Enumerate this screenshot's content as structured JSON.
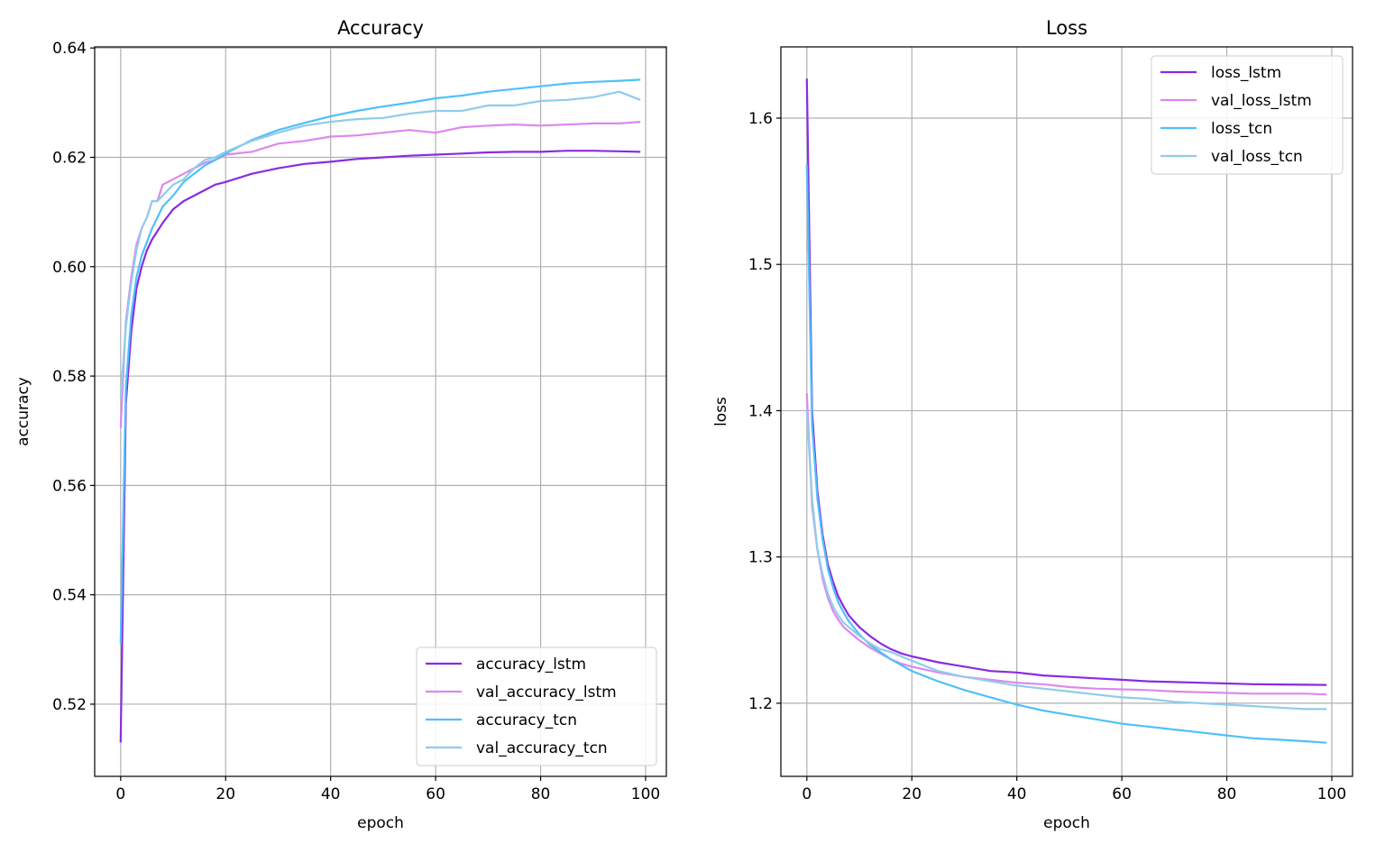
{
  "chart_data": [
    {
      "type": "line",
      "title": "Accuracy",
      "xlabel": "epoch",
      "ylabel": "accuracy",
      "xlim": [
        -4.95,
        103.95
      ],
      "ylim": [
        0.5068,
        0.6402
      ],
      "xticks": [
        0,
        20,
        40,
        60,
        80,
        100
      ],
      "yticks": [
        0.52,
        0.54,
        0.56,
        0.58,
        0.6,
        0.62,
        0.64
      ],
      "ytick_labels": [
        "0.52",
        "0.54",
        "0.56",
        "0.58",
        "0.60",
        "0.62",
        "0.64"
      ],
      "grid": true,
      "legend_position": "lower-right",
      "x": [
        0,
        1,
        2,
        3,
        4,
        5,
        6,
        7,
        8,
        10,
        12,
        14,
        16,
        18,
        20,
        25,
        30,
        35,
        40,
        45,
        50,
        55,
        60,
        65,
        70,
        75,
        80,
        85,
        90,
        95,
        99
      ],
      "series": [
        {
          "name": "accuracy_lstm",
          "color": "#8a2be2",
          "values": [
            0.513,
            0.575,
            0.588,
            0.596,
            0.6,
            0.603,
            0.605,
            0.6065,
            0.608,
            0.6105,
            0.612,
            0.613,
            0.614,
            0.615,
            0.6155,
            0.617,
            0.618,
            0.6188,
            0.6192,
            0.6197,
            0.62,
            0.6203,
            0.6205,
            0.6207,
            0.6209,
            0.621,
            0.621,
            0.6212,
            0.6212,
            0.6211,
            0.621
          ]
        },
        {
          "name": "val_accuracy_lstm",
          "color": "#dd88ee",
          "values": [
            0.5705,
            0.59,
            0.598,
            0.604,
            0.607,
            0.609,
            0.612,
            0.612,
            0.615,
            0.616,
            0.617,
            0.618,
            0.619,
            0.6195,
            0.6205,
            0.621,
            0.6225,
            0.623,
            0.6238,
            0.624,
            0.6245,
            0.625,
            0.6245,
            0.6255,
            0.6258,
            0.626,
            0.6258,
            0.626,
            0.6262,
            0.6262,
            0.6265
          ]
        },
        {
          "name": "accuracy_tcn",
          "color": "#4fc0fa",
          "values": [
            0.531,
            0.578,
            0.591,
            0.598,
            0.602,
            0.6045,
            0.607,
            0.609,
            0.611,
            0.613,
            0.6155,
            0.617,
            0.6185,
            0.6195,
            0.6207,
            0.6232,
            0.625,
            0.6263,
            0.6275,
            0.6285,
            0.6293,
            0.63,
            0.6308,
            0.6313,
            0.632,
            0.6325,
            0.633,
            0.6335,
            0.6338,
            0.634,
            0.6342
          ]
        },
        {
          "name": "val_accuracy_tcn",
          "color": "#90cceb",
          "values": [
            0.576,
            0.589,
            0.597,
            0.603,
            0.607,
            0.609,
            0.612,
            0.612,
            0.613,
            0.615,
            0.616,
            0.618,
            0.6195,
            0.62,
            0.621,
            0.623,
            0.6245,
            0.6258,
            0.6265,
            0.627,
            0.6272,
            0.628,
            0.6285,
            0.6285,
            0.6295,
            0.6295,
            0.6303,
            0.6305,
            0.631,
            0.632,
            0.6305
          ]
        }
      ]
    },
    {
      "type": "line",
      "title": "Loss",
      "xlabel": "epoch",
      "ylabel": "loss",
      "xlim": [
        -4.95,
        103.95
      ],
      "ylim": [
        1.15,
        1.6487
      ],
      "xticks": [
        0,
        20,
        40,
        60,
        80,
        100
      ],
      "yticks": [
        1.2,
        1.3,
        1.4,
        1.5,
        1.6
      ],
      "ytick_labels": [
        "1.2",
        "1.3",
        "1.4",
        "1.5",
        "1.6"
      ],
      "grid": true,
      "legend_position": "upper-right",
      "x": [
        0,
        1,
        2,
        3,
        4,
        5,
        6,
        7,
        8,
        10,
        12,
        14,
        16,
        18,
        20,
        25,
        30,
        35,
        40,
        45,
        50,
        55,
        60,
        65,
        70,
        75,
        80,
        85,
        90,
        95,
        99
      ],
      "series": [
        {
          "name": "loss_lstm",
          "color": "#8a2be2",
          "values": [
            1.627,
            1.4,
            1.345,
            1.315,
            1.295,
            1.283,
            1.273,
            1.266,
            1.26,
            1.252,
            1.246,
            1.241,
            1.237,
            1.234,
            1.232,
            1.228,
            1.225,
            1.222,
            1.221,
            1.219,
            1.218,
            1.217,
            1.216,
            1.215,
            1.2145,
            1.214,
            1.2135,
            1.213,
            1.2128,
            1.2126,
            1.2125
          ]
        },
        {
          "name": "val_loss_lstm",
          "color": "#dd88ee",
          "values": [
            1.412,
            1.335,
            1.305,
            1.285,
            1.272,
            1.263,
            1.257,
            1.252,
            1.249,
            1.243,
            1.238,
            1.234,
            1.23,
            1.227,
            1.225,
            1.221,
            1.218,
            1.216,
            1.214,
            1.213,
            1.211,
            1.21,
            1.2095,
            1.209,
            1.208,
            1.2075,
            1.207,
            1.2065,
            1.2065,
            1.2065,
            1.206
          ]
        },
        {
          "name": "loss_tcn",
          "color": "#4fc0fa",
          "values": [
            1.568,
            1.39,
            1.34,
            1.312,
            1.292,
            1.279,
            1.269,
            1.262,
            1.256,
            1.247,
            1.24,
            1.235,
            1.23,
            1.226,
            1.222,
            1.215,
            1.209,
            1.204,
            1.199,
            1.195,
            1.192,
            1.189,
            1.186,
            1.184,
            1.182,
            1.18,
            1.178,
            1.176,
            1.175,
            1.174,
            1.173
          ]
        },
        {
          "name": "val_loss_tcn",
          "color": "#90cceb",
          "values": [
            1.4,
            1.34,
            1.305,
            1.288,
            1.275,
            1.266,
            1.26,
            1.255,
            1.252,
            1.246,
            1.241,
            1.237,
            1.235,
            1.232,
            1.229,
            1.222,
            1.218,
            1.215,
            1.212,
            1.21,
            1.208,
            1.206,
            1.204,
            1.203,
            1.201,
            1.2,
            1.199,
            1.198,
            1.197,
            1.196,
            1.196
          ]
        }
      ]
    }
  ]
}
